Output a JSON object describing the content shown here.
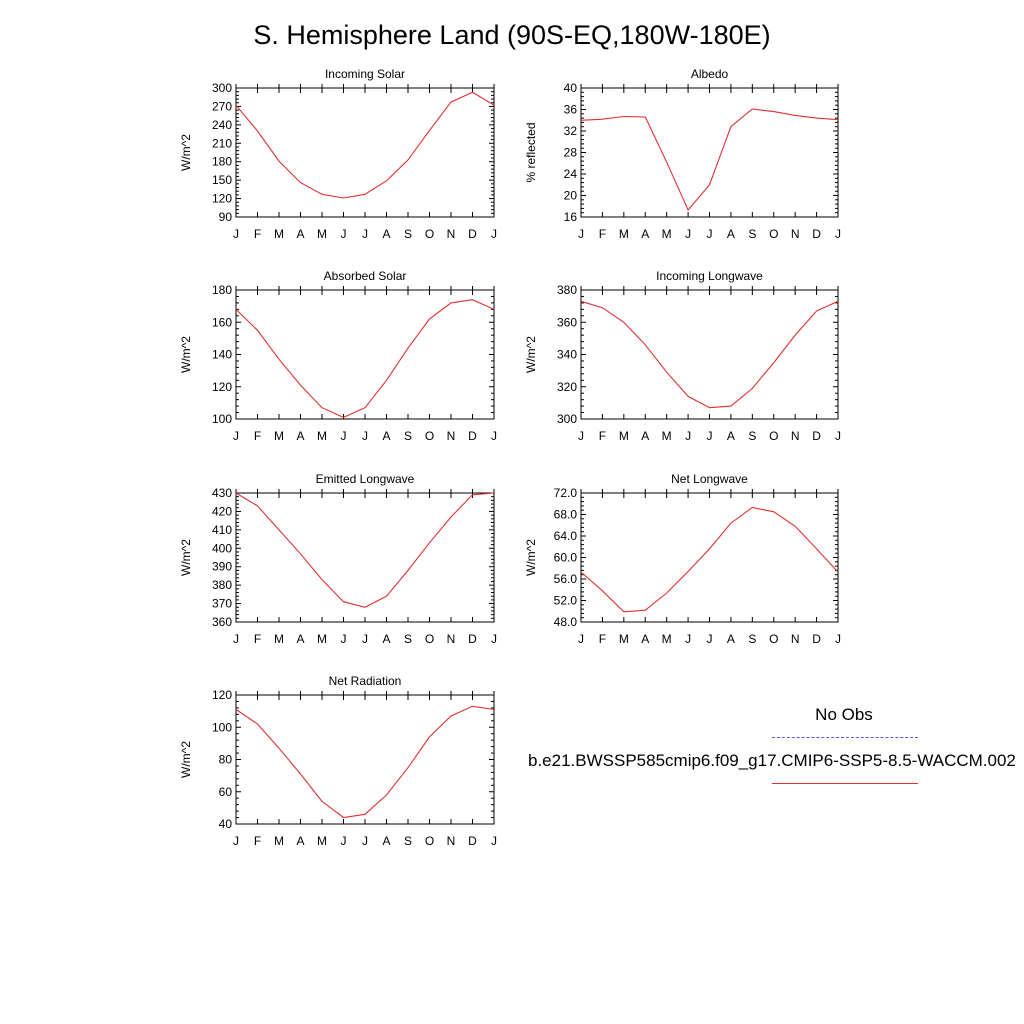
{
  "title": "S. Hemisphere Land (90S-EQ,180W-180E)",
  "legend": {
    "obs_label": "No Obs",
    "obs_color": "#5555ee",
    "case_label": "b.e21.BWSSP585cmip6.f09_g17.CMIP6-SSP5-8.5-WACCM.002",
    "case_color": "#e03030"
  },
  "chart_data": [
    {
      "type": "line",
      "title": "Incoming Solar",
      "ylabel": "W/m^2",
      "categories": [
        "J",
        "F",
        "M",
        "A",
        "M",
        "J",
        "J",
        "A",
        "S",
        "O",
        "N",
        "D",
        "J"
      ],
      "ylim": [
        90,
        300
      ],
      "yticks": [
        "90",
        "120",
        "150",
        "180",
        "210",
        "240",
        "270",
        "300"
      ],
      "values": [
        272,
        230,
        181,
        146,
        127,
        121,
        127,
        149,
        183,
        231,
        277,
        293,
        272
      ]
    },
    {
      "type": "line",
      "title": "Albedo",
      "ylabel": "% reflected",
      "categories": [
        "J",
        "F",
        "M",
        "A",
        "M",
        "J",
        "J",
        "A",
        "S",
        "O",
        "N",
        "D",
        "J"
      ],
      "ylim": [
        16,
        40
      ],
      "yticks": [
        "16",
        "20",
        "24",
        "28",
        "32",
        "36",
        "40"
      ],
      "values": [
        34.0,
        34.2,
        34.7,
        34.6,
        26.2,
        17.3,
        22.0,
        32.8,
        36.1,
        35.6,
        34.9,
        34.4,
        34.1
      ]
    },
    {
      "type": "line",
      "title": "Absorbed Solar",
      "ylabel": "W/m^2",
      "categories": [
        "J",
        "F",
        "M",
        "A",
        "M",
        "J",
        "J",
        "A",
        "S",
        "O",
        "N",
        "D",
        "J"
      ],
      "ylim": [
        100,
        180
      ],
      "yticks": [
        "100",
        "120",
        "140",
        "160",
        "180"
      ],
      "values": [
        168,
        155,
        137,
        121,
        107,
        101,
        107,
        124,
        144,
        162,
        172,
        174,
        168
      ]
    },
    {
      "type": "line",
      "title": "Incoming Longwave",
      "ylabel": "W/m^2",
      "categories": [
        "J",
        "F",
        "M",
        "A",
        "M",
        "J",
        "J",
        "A",
        "S",
        "O",
        "N",
        "D",
        "J"
      ],
      "ylim": [
        300,
        380
      ],
      "yticks": [
        "300",
        "320",
        "340",
        "360",
        "380"
      ],
      "values": [
        373,
        369,
        360,
        346,
        329,
        314,
        307,
        308,
        319,
        335,
        352,
        367,
        373
      ]
    },
    {
      "type": "line",
      "title": "Emitted Longwave",
      "ylabel": "W/m^2",
      "categories": [
        "J",
        "F",
        "M",
        "A",
        "M",
        "J",
        "J",
        "A",
        "S",
        "O",
        "N",
        "D",
        "J"
      ],
      "ylim": [
        360,
        430
      ],
      "yticks": [
        "360",
        "370",
        "380",
        "390",
        "400",
        "410",
        "420",
        "430"
      ],
      "values": [
        430,
        423,
        410,
        397,
        383,
        371,
        368,
        374,
        388,
        403,
        417,
        429,
        430
      ]
    },
    {
      "type": "line",
      "title": "Net Longwave",
      "ylabel": "W/m^2",
      "categories": [
        "J",
        "F",
        "M",
        "A",
        "M",
        "J",
        "J",
        "A",
        "S",
        "O",
        "N",
        "D",
        "J"
      ],
      "ylim": [
        48,
        72
      ],
      "yticks": [
        "48.0",
        "52.0",
        "56.0",
        "60.0",
        "64.0",
        "68.0",
        "72.0"
      ],
      "values": [
        57.3,
        53.8,
        49.9,
        50.2,
        53.4,
        57.4,
        61.6,
        66.4,
        69.3,
        68.5,
        65.8,
        61.6,
        57.3
      ]
    },
    {
      "type": "line",
      "title": "Net Radiation",
      "ylabel": "W/m^2",
      "categories": [
        "J",
        "F",
        "M",
        "A",
        "M",
        "J",
        "J",
        "A",
        "S",
        "O",
        "N",
        "D",
        "J"
      ],
      "ylim": [
        40,
        120
      ],
      "yticks": [
        "40",
        "60",
        "80",
        "100",
        "120"
      ],
      "values": [
        111,
        102,
        87,
        71,
        54,
        44,
        46,
        58,
        75,
        94,
        107,
        113,
        111
      ]
    }
  ]
}
